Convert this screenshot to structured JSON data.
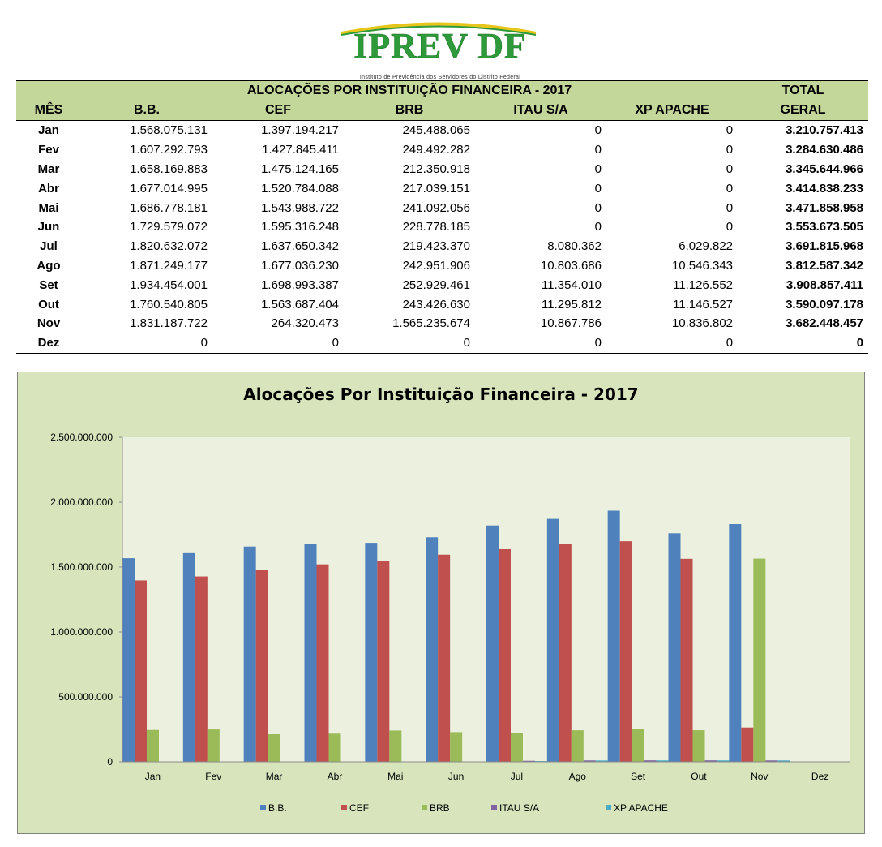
{
  "logo": {
    "name": "IPREV DF",
    "subtitle": "Instituto de Previdência dos Servidores do Distrito Federal"
  },
  "table": {
    "title": "ALOCAÇÕES POR INSTITUIÇÃO FINANCEIRA - 2017",
    "total_top": "TOTAL",
    "total_bottom": "GERAL",
    "headers": [
      "MÊS",
      "B.B.",
      "CEF",
      "BRB",
      "ITAU S/A",
      "XP APACHE"
    ],
    "rows": [
      [
        "Jan",
        "1.568.075.131",
        "1.397.194.217",
        "245.488.065",
        "0",
        "0",
        "3.210.757.413"
      ],
      [
        "Fev",
        "1.607.292.793",
        "1.427.845.411",
        "249.492.282",
        "0",
        "0",
        "3.284.630.486"
      ],
      [
        "Mar",
        "1.658.169.883",
        "1.475.124.165",
        "212.350.918",
        "0",
        "0",
        "3.345.644.966"
      ],
      [
        "Abr",
        "1.677.014.995",
        "1.520.784.088",
        "217.039.151",
        "0",
        "0",
        "3.414.838.233"
      ],
      [
        "Mai",
        "1.686.778.181",
        "1.543.988.722",
        "241.092.056",
        "0",
        "0",
        "3.471.858.958"
      ],
      [
        "Jun",
        "1.729.579.072",
        "1.595.316.248",
        "228.778.185",
        "0",
        "0",
        "3.553.673.505"
      ],
      [
        "Jul",
        "1.820.632.072",
        "1.637.650.342",
        "219.423.370",
        "8.080.362",
        "6.029.822",
        "3.691.815.968"
      ],
      [
        "Ago",
        "1.871.249.177",
        "1.677.036.230",
        "242.951.906",
        "10.803.686",
        "10.546.343",
        "3.812.587.342"
      ],
      [
        "Set",
        "1.934.454.001",
        "1.698.993.387",
        "252.929.461",
        "11.354.010",
        "11.126.552",
        "3.908.857.411"
      ],
      [
        "Out",
        "1.760.540.805",
        "1.563.687.404",
        "243.426.630",
        "11.295.812",
        "11.146.527",
        "3.590.097.178"
      ],
      [
        "Nov",
        "1.831.187.722",
        "264.320.473",
        "1.565.235.674",
        "10.867.786",
        "10.836.802",
        "3.682.448.457"
      ],
      [
        "Dez",
        "0",
        "0",
        "0",
        "0",
        "0",
        "0"
      ]
    ]
  },
  "chart_data": {
    "type": "bar",
    "title": "Alocações Por Instituição Financeira - 2017",
    "categories": [
      "Jan",
      "Fev",
      "Mar",
      "Abr",
      "Mai",
      "Jun",
      "Jul",
      "Ago",
      "Set",
      "Out",
      "Nov",
      "Dez"
    ],
    "series": [
      {
        "name": "B.B.",
        "color": "#4f81bd",
        "values": [
          1568075131,
          1607292793,
          1658169883,
          1677014995,
          1686778181,
          1729579072,
          1820632072,
          1871249177,
          1934454001,
          1760540805,
          1831187722,
          0
        ]
      },
      {
        "name": "CEF",
        "color": "#c0504d",
        "values": [
          1397194217,
          1427845411,
          1475124165,
          1520784088,
          1543988722,
          1595316248,
          1637650342,
          1677036230,
          1698993387,
          1563687404,
          264320473,
          0
        ]
      },
      {
        "name": "BRB",
        "color": "#9bbb59",
        "values": [
          245488065,
          249492282,
          212350918,
          217039151,
          241092056,
          228778185,
          219423370,
          242951906,
          252929461,
          243426630,
          1565235674,
          0
        ]
      },
      {
        "name": "ITAU S/A",
        "color": "#8064a2",
        "values": [
          0,
          0,
          0,
          0,
          0,
          0,
          8080362,
          10803686,
          11354010,
          11295812,
          10867786,
          0
        ]
      },
      {
        "name": "XP APACHE",
        "color": "#4bacc6",
        "values": [
          0,
          0,
          0,
          0,
          0,
          0,
          6029822,
          10546343,
          11126552,
          11146527,
          10836802,
          0
        ]
      }
    ],
    "ylim": [
      0,
      2500000000
    ],
    "yticks": [
      0,
      500000000,
      1000000000,
      1500000000,
      2000000000,
      2500000000
    ],
    "ytick_labels": [
      "0",
      "500.000.000",
      "1.000.000.000",
      "1.500.000.000",
      "2.000.000.000",
      "2.500.000.000"
    ],
    "grid": false,
    "legend": "bottom",
    "plot_bg": "#ebf1de",
    "chart_bg": "#d8e4bc"
  }
}
